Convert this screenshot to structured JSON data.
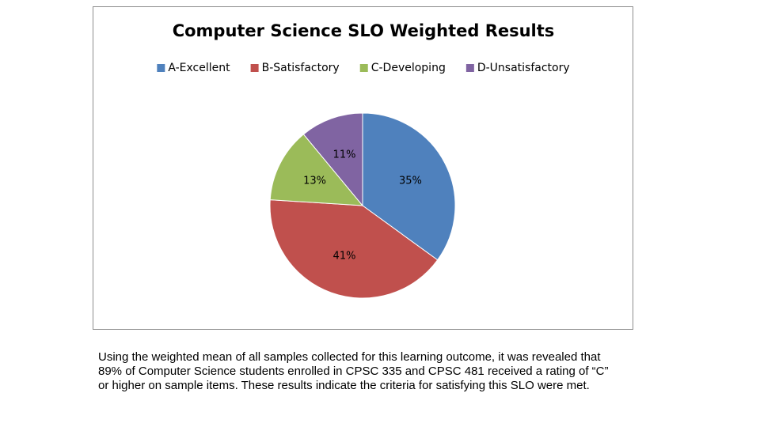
{
  "chart_data": {
    "type": "pie",
    "title": "Computer Science SLO Weighted Results",
    "categories": [
      "A-Excellent",
      "B-Satisfactory",
      "C-Developing",
      "D-Unsatisfactory"
    ],
    "values": [
      35,
      41,
      13,
      11
    ],
    "value_labels": [
      "35%",
      "41%",
      "13%",
      "11%"
    ],
    "colors": [
      "#4f81bd",
      "#c0504d",
      "#9bbb59",
      "#8064a2"
    ],
    "legend": "top"
  },
  "body_text": "Using the weighted mean of all samples collected for this learning outcome, it was revealed that 89% of Computer Science students enrolled in CPSC 335 and CPSC 481 received a rating of “C” or higher on sample items. These results indicate the criteria for satisfying this SLO were met."
}
